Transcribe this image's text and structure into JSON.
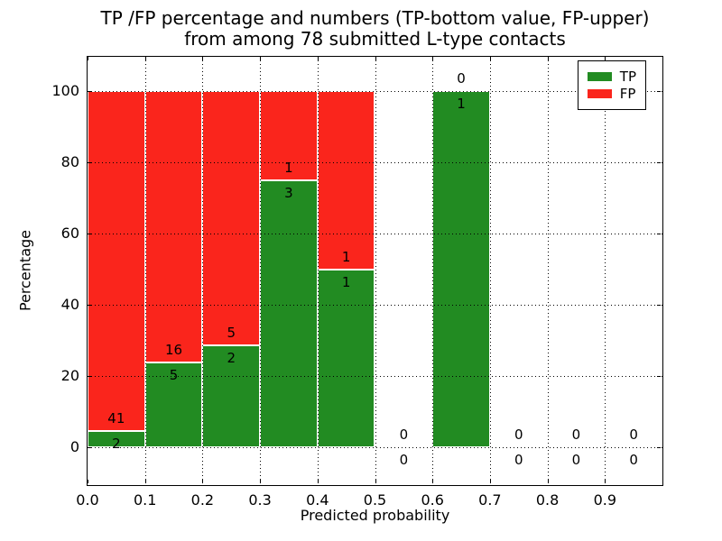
{
  "title": {
    "line1": "TP /FP percentage and numbers (TP-bottom value, FP-upper)",
    "line2": "from among 78 submitted L-type contacts"
  },
  "axes": {
    "xlabel": "Predicted probability",
    "ylabel": "Percentage",
    "xticks": [
      "0.0",
      "0.1",
      "0.2",
      "0.3",
      "0.4",
      "0.5",
      "0.6",
      "0.7",
      "0.8",
      "0.9"
    ],
    "yticks": [
      "0",
      "20",
      "40",
      "60",
      "80",
      "100"
    ]
  },
  "legend": {
    "items": [
      {
        "label": "TP",
        "color": "#228b22"
      },
      {
        "label": "FP",
        "color": "#fa251c"
      }
    ]
  },
  "chart_data": {
    "type": "bar",
    "stacked": true,
    "title": "TP /FP percentage and numbers (TP-bottom value, FP-upper) from among 78 submitted L-type contacts",
    "xlabel": "Predicted probability",
    "ylabel": "Percentage",
    "xlim": [
      0.0,
      1.0
    ],
    "ylim": [
      -10.6,
      109.6
    ],
    "grid": true,
    "grid_style": "dotted",
    "legend_position": "upper right",
    "bar_edge_color": "#ffffff",
    "bin_edges": [
      0.0,
      0.1,
      0.2,
      0.3,
      0.4,
      0.5,
      0.6,
      0.7,
      0.8,
      0.9,
      1.0
    ],
    "categories": [
      "0.0-0.1",
      "0.1-0.2",
      "0.2-0.3",
      "0.3-0.4",
      "0.4-0.5",
      "0.5-0.6",
      "0.6-0.7",
      "0.7-0.8",
      "0.8-0.9",
      "0.9-1.0"
    ],
    "series": [
      {
        "name": "TP",
        "color": "#228b22",
        "counts": [
          2,
          5,
          2,
          3,
          1,
          0,
          1,
          0,
          0,
          0
        ],
        "percent": [
          4.65,
          23.81,
          28.57,
          75.0,
          50.0,
          0,
          100.0,
          0,
          0,
          0
        ]
      },
      {
        "name": "FP",
        "color": "#fa251c",
        "counts": [
          41,
          16,
          5,
          1,
          1,
          0,
          0,
          0,
          0,
          0
        ],
        "percent": [
          95.35,
          76.19,
          71.43,
          25.0,
          50.0,
          0,
          0,
          0,
          0,
          0
        ]
      }
    ],
    "total_contacts": 78
  }
}
